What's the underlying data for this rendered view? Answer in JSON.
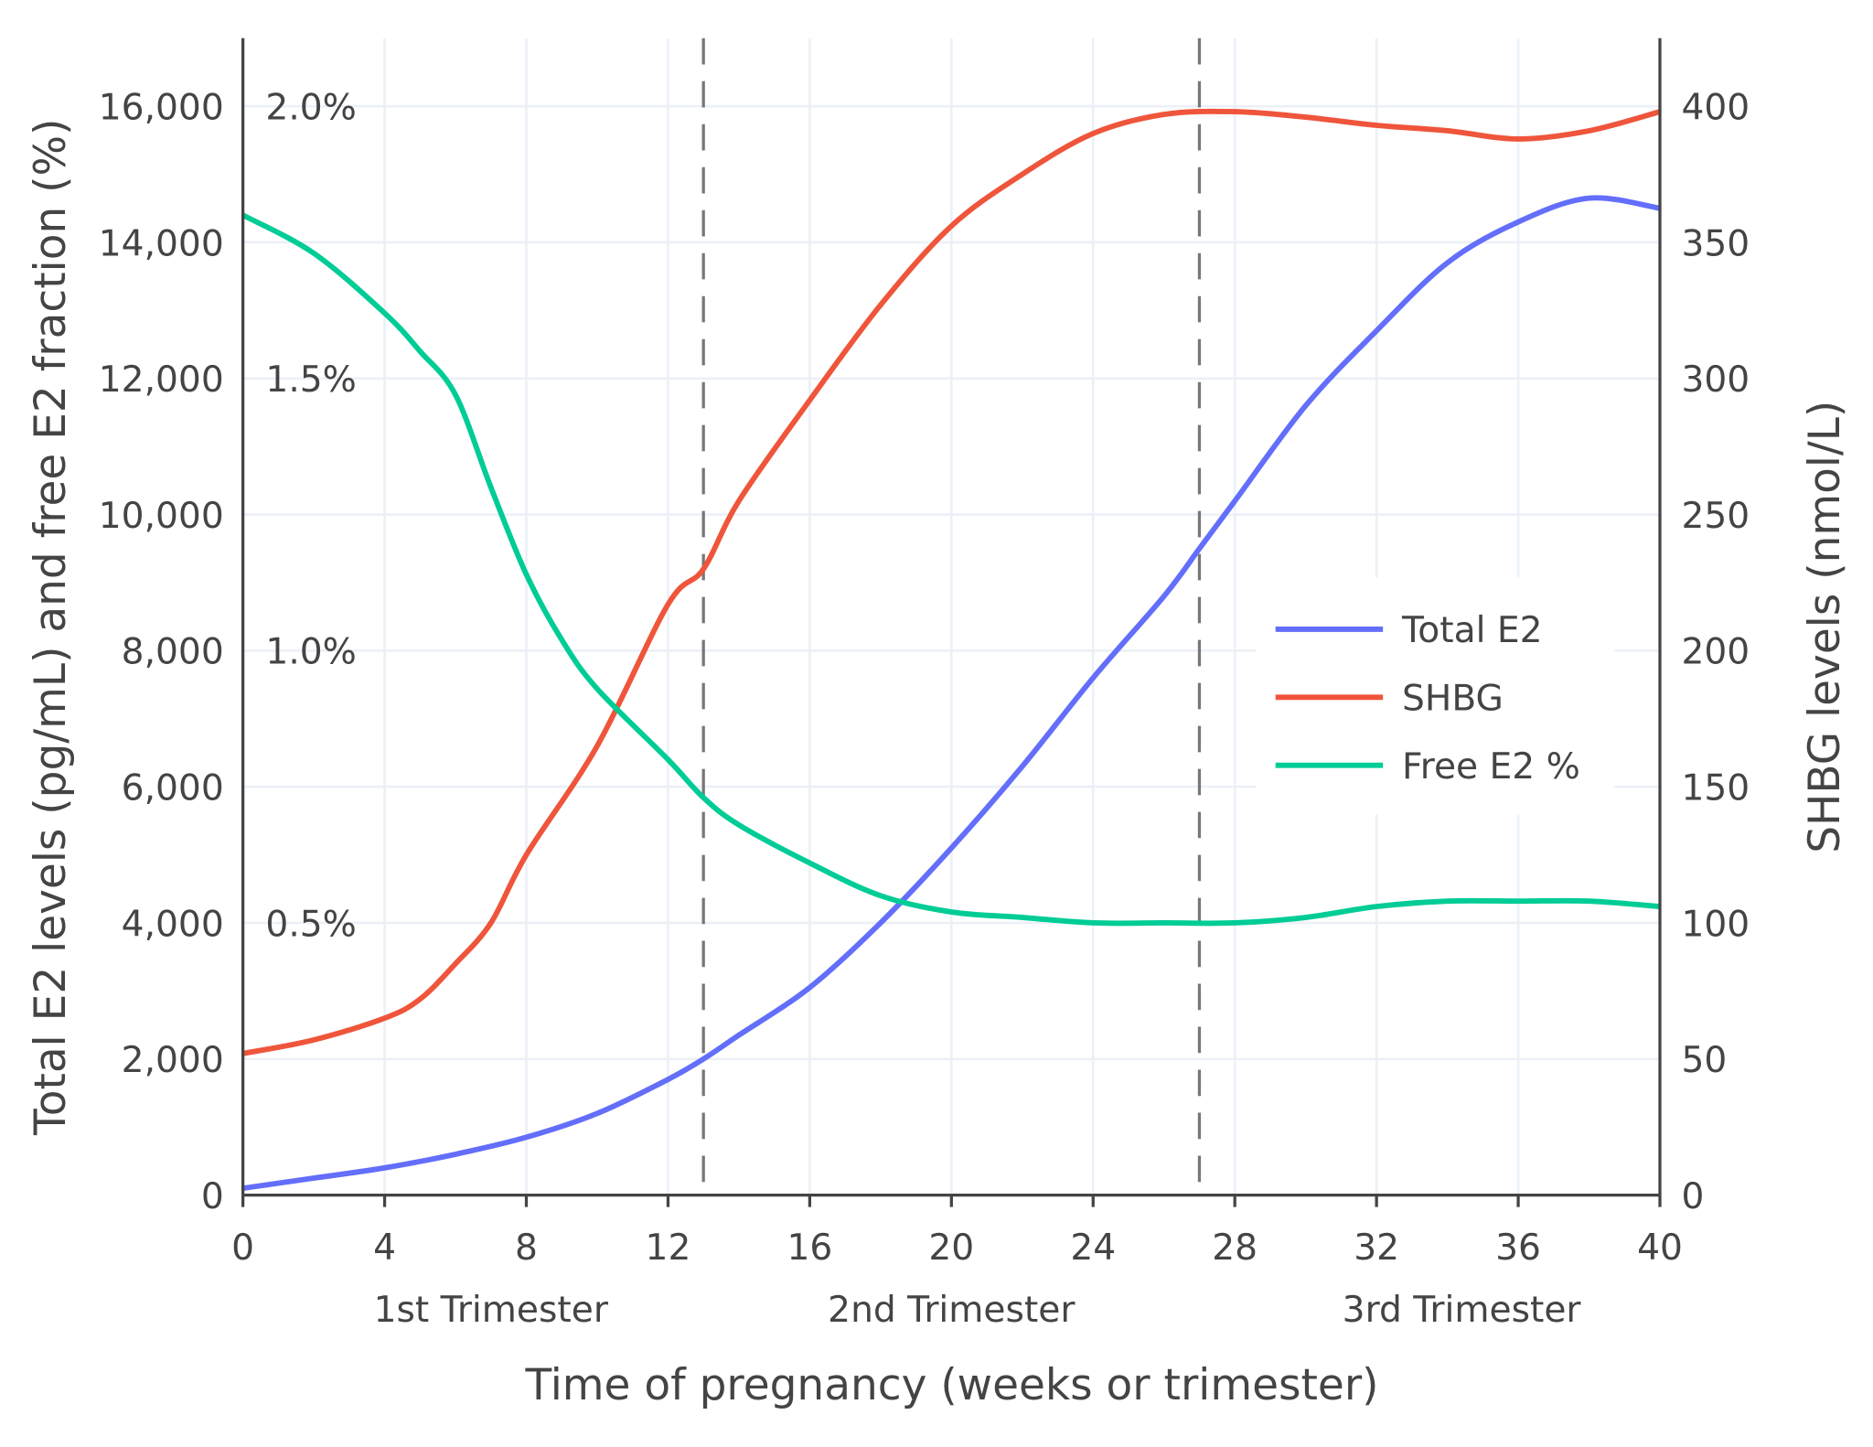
{
  "chart_data": {
    "type": "line",
    "title": "",
    "xlabel": "Time of pregnancy (weeks or trimester)",
    "ylabel_left": "Total E2 levels (pg/mL) and free E2 fraction (%)",
    "ylabel_right": "SHBG levels (nmol/L)",
    "xlim": [
      0,
      40
    ],
    "ylim_left": [
      0,
      17000
    ],
    "ylim_right": [
      0,
      425
    ],
    "x_ticks": [
      "0",
      "4",
      "8",
      "12",
      "16",
      "20",
      "24",
      "28",
      "32",
      "36",
      "40"
    ],
    "y_ticks_left": [
      "0",
      "2,000",
      "4,000",
      "6,000",
      "8,000",
      "10,000",
      "12,000",
      "14,000",
      "16,000"
    ],
    "y_ticks_right": [
      "0",
      "50",
      "100",
      "150",
      "200",
      "250",
      "300",
      "350",
      "400"
    ],
    "percent_ticks": [
      "0.5%",
      "1.0%",
      "1.5%",
      "2.0%"
    ],
    "trimester_labels": [
      "1st Trimester",
      "2nd Trimester",
      "3rd Trimester"
    ],
    "trimester_boundaries_weeks": [
      13,
      27
    ],
    "grid": true,
    "legend_placement": "center-right",
    "series": [
      {
        "name": "Total E2",
        "axis": "left",
        "unit": "pg/mL",
        "color": "#636efa",
        "x": [
          0,
          2,
          4,
          6,
          8,
          10,
          12,
          13,
          14,
          16,
          18,
          20,
          22,
          24,
          26,
          27,
          28,
          30,
          32,
          34,
          36,
          38,
          40
        ],
        "values": [
          100,
          250,
          400,
          600,
          850,
          1200,
          1700,
          2000,
          2350,
          3050,
          4000,
          5100,
          6300,
          7600,
          8800,
          9500,
          10200,
          11600,
          12700,
          13700,
          14300,
          14650,
          14500
        ]
      },
      {
        "name": "SHBG",
        "axis": "right",
        "unit": "nmol/L",
        "color": "#ef553b",
        "x": [
          0,
          2,
          4,
          5,
          6,
          7,
          8,
          10,
          12,
          13,
          14,
          16,
          18,
          20,
          22,
          24,
          26,
          28,
          30,
          32,
          34,
          36,
          38,
          40
        ],
        "values": [
          52,
          57,
          65,
          72,
          85,
          100,
          125,
          165,
          217,
          230,
          255,
          292,
          327,
          356,
          375,
          390,
          397,
          398,
          396,
          393,
          391,
          388,
          391,
          398
        ]
      },
      {
        "name": "Free E2 %",
        "axis": "percent",
        "unit": "%",
        "color": "#00cc96",
        "x": [
          0,
          2,
          4,
          5,
          6,
          7,
          8,
          9,
          10,
          12,
          13,
          14,
          16,
          18,
          20,
          22,
          24,
          26,
          28,
          30,
          32,
          34,
          36,
          38,
          40
        ],
        "values": [
          1.8,
          1.73,
          1.62,
          1.55,
          1.47,
          1.3,
          1.14,
          1.02,
          0.93,
          0.8,
          0.73,
          0.68,
          0.61,
          0.55,
          0.52,
          0.51,
          0.5,
          0.5,
          0.5,
          0.51,
          0.53,
          0.54,
          0.54,
          0.54,
          0.53
        ]
      }
    ]
  }
}
